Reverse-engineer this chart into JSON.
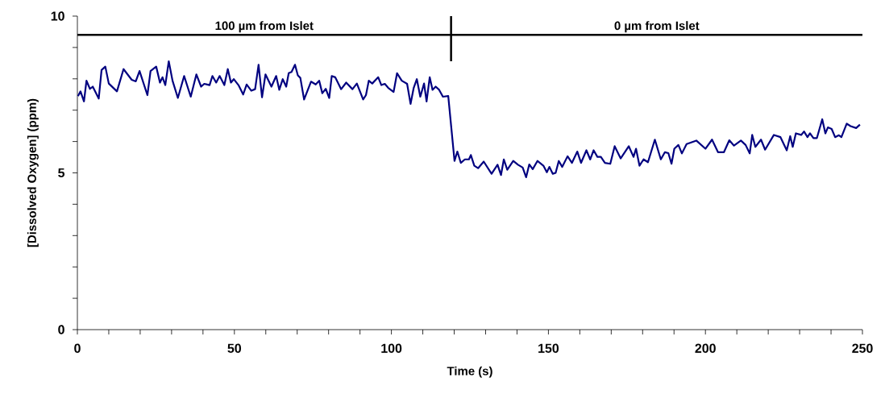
{
  "chart_data": {
    "type": "line",
    "xlabel": "Time (s)",
    "ylabel": "[Dissolved Oxygen] (ppm)",
    "xlim": [
      0,
      250
    ],
    "ylim": [
      0,
      10
    ],
    "xticks": [
      0,
      {
        "value": 10,
        "label": null
      },
      {
        "value": 20,
        "label": null
      },
      {
        "value": 30,
        "label": null
      },
      {
        "value": 40,
        "label": null
      },
      50,
      {
        "value": 60,
        "label": null
      },
      {
        "value": 70,
        "label": null
      },
      {
        "value": 80,
        "label": null
      },
      {
        "value": 90,
        "label": null
      },
      100,
      {
        "value": 110,
        "label": null
      },
      {
        "value": 120,
        "label": null
      },
      {
        "value": 130,
        "label": null
      },
      {
        "value": 140,
        "label": null
      },
      150,
      {
        "value": 160,
        "label": null
      },
      {
        "value": 170,
        "label": null
      },
      {
        "value": 180,
        "label": null
      },
      {
        "value": 190,
        "label": null
      },
      200,
      {
        "value": 210,
        "label": null
      },
      {
        "value": 220,
        "label": null
      },
      {
        "value": 230,
        "label": null
      },
      {
        "value": 240,
        "label": null
      },
      250
    ],
    "yticks": [
      0,
      {
        "value": 1,
        "label": null
      },
      {
        "value": 2,
        "label": null
      },
      {
        "value": 3,
        "label": null
      },
      {
        "value": 4,
        "label": null
      },
      5,
      {
        "value": 6,
        "label": null
      },
      {
        "value": 7,
        "label": null
      },
      {
        "value": 8,
        "label": null
      },
      {
        "value": 9,
        "label": null
      },
      10
    ],
    "grid": false,
    "marker": "none",
    "line_style": "solid",
    "ref_lines": [
      {
        "axis": "y",
        "value": 9.4,
        "color": "#000000"
      },
      {
        "axis": "x",
        "value": 119,
        "color": "#000000"
      }
    ],
    "annotations": [
      {
        "text": "100 µm from Islet",
        "x": 59.5,
        "y": 9.4
      },
      {
        "text": "0 µm from Islet",
        "x": 184.5,
        "y": 9.4
      }
    ],
    "series": [
      {
        "color": "#000080",
        "x": [
          0.2,
          1.0,
          2.1,
          2.9,
          4.0,
          4.9,
          6.8,
          7.7,
          8.9,
          10.0,
          12.6,
          14.7,
          17.3,
          18.6,
          19.8,
          22.3,
          23.3,
          25.1,
          26.3,
          27.1,
          28.0,
          29.1,
          30.3,
          32.0,
          34.0,
          36.1,
          37.9,
          39.4,
          40.4,
          42.1,
          43.0,
          44.2,
          45.3,
          46.8,
          47.9,
          48.9,
          49.8,
          51.3,
          52.8,
          53.9,
          55.4,
          56.6,
          57.7,
          58.8,
          59.9,
          61.8,
          63.3,
          64.3,
          65.4,
          66.5,
          67.3,
          68.2,
          69.3,
          70.2,
          71.0,
          72.2,
          74.4,
          75.9,
          77.0,
          78.0,
          79.1,
          80.2,
          81.0,
          82.1,
          84.0,
          85.6,
          87.6,
          89.0,
          91.0,
          91.9,
          92.8,
          93.9,
          95.8,
          96.8,
          97.9,
          99.0,
          100.7,
          101.8,
          103.3,
          105.0,
          106.1,
          107.1,
          108.1,
          109.2,
          110.4,
          111.2,
          112.2,
          113.1,
          114.1,
          115.2,
          116.4,
          118.1,
          120.1,
          121.0,
          122.1,
          123.4,
          124.7,
          125.3,
          126.4,
          127.6,
          129.4,
          131.9,
          133.8,
          134.9,
          135.8,
          136.9,
          138.8,
          140.3,
          141.8,
          142.9,
          143.9,
          145.0,
          146.5,
          148.4,
          149.5,
          150.3,
          151.4,
          152.3,
          153.3,
          154.4,
          156.1,
          157.5,
          159.2,
          160.4,
          162.1,
          163.3,
          164.4,
          165.6,
          166.7,
          168.0,
          169.7,
          171.1,
          173.0,
          175.6,
          177.1,
          177.9,
          179.0,
          180.3,
          181.7,
          183.9,
          185.8,
          187.1,
          188.2,
          189.2,
          190.1,
          191.4,
          192.5,
          194.0,
          197.1,
          200.0,
          202.1,
          204.0,
          205.9,
          207.6,
          209.1,
          211.3,
          212.8,
          214.1,
          214.9,
          215.9,
          217.7,
          219.0,
          221.8,
          223.9,
          225.9,
          227.0,
          227.8,
          228.8,
          230.5,
          231.4,
          232.5,
          233.3,
          234.4,
          235.5,
          237.2,
          238.2,
          239.0,
          240.2,
          241.3,
          242.5,
          243.3,
          245.0,
          246.2,
          248.0,
          249.2
        ],
        "values": [
          7.45,
          7.6,
          7.28,
          7.94,
          7.68,
          7.75,
          7.37,
          8.28,
          8.39,
          7.85,
          7.6,
          8.31,
          7.97,
          7.92,
          8.25,
          7.48,
          8.25,
          8.39,
          7.88,
          8.05,
          7.8,
          8.56,
          7.94,
          7.39,
          8.09,
          7.43,
          8.14,
          7.75,
          7.84,
          7.8,
          8.09,
          7.88,
          8.09,
          7.8,
          8.31,
          7.88,
          7.99,
          7.8,
          7.5,
          7.82,
          7.62,
          7.67,
          8.45,
          7.41,
          8.14,
          7.75,
          8.09,
          7.65,
          7.99,
          7.75,
          8.18,
          8.22,
          8.45,
          8.11,
          8.03,
          7.34,
          7.91,
          7.82,
          7.94,
          7.54,
          7.68,
          7.39,
          8.09,
          8.05,
          7.67,
          7.88,
          7.67,
          7.85,
          7.34,
          7.48,
          7.94,
          7.85,
          8.05,
          7.8,
          7.84,
          7.71,
          7.58,
          8.18,
          7.94,
          7.84,
          7.2,
          7.71,
          7.99,
          7.43,
          7.85,
          7.28,
          8.05,
          7.65,
          7.75,
          7.65,
          7.43,
          7.45,
          5.38,
          5.68,
          5.32,
          5.43,
          5.43,
          5.57,
          5.23,
          5.15,
          5.36,
          4.97,
          5.26,
          4.93,
          5.43,
          5.1,
          5.38,
          5.26,
          5.17,
          4.86,
          5.27,
          5.12,
          5.38,
          5.23,
          5.02,
          5.19,
          4.97,
          5.0,
          5.38,
          5.19,
          5.53,
          5.32,
          5.68,
          5.32,
          5.72,
          5.43,
          5.72,
          5.51,
          5.51,
          5.32,
          5.29,
          5.85,
          5.46,
          5.85,
          5.51,
          5.77,
          5.23,
          5.43,
          5.34,
          6.06,
          5.43,
          5.66,
          5.63,
          5.29,
          5.77,
          5.89,
          5.62,
          5.92,
          6.03,
          5.77,
          6.06,
          5.66,
          5.66,
          6.04,
          5.87,
          6.03,
          5.89,
          5.62,
          6.21,
          5.83,
          6.06,
          5.74,
          6.21,
          6.14,
          5.72,
          6.17,
          5.83,
          6.26,
          6.21,
          6.32,
          6.14,
          6.26,
          6.11,
          6.11,
          6.71,
          6.26,
          6.45,
          6.4,
          6.14,
          6.2,
          6.14,
          6.57,
          6.49,
          6.43,
          6.54
        ]
      }
    ]
  }
}
